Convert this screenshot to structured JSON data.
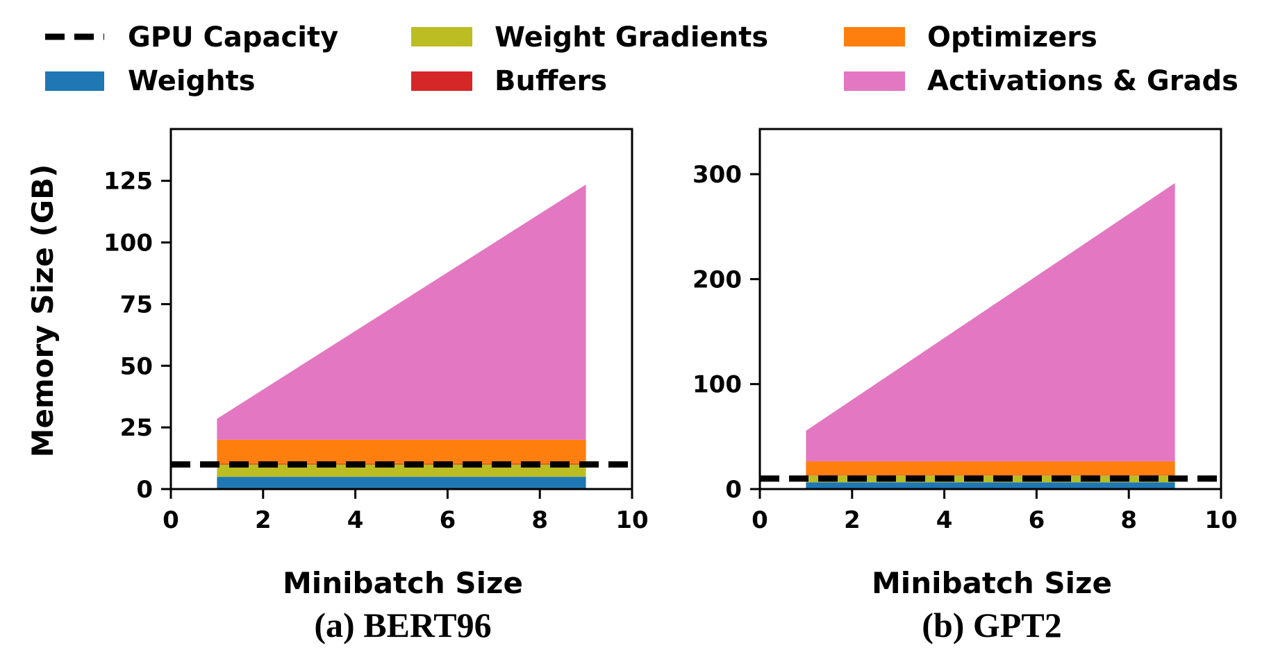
{
  "legend": {
    "gpu_capacity": "GPU Capacity",
    "weights": "Weights",
    "weight_gradients": "Weight Gradients",
    "buffers": "Buffers",
    "optimizers": "Optimizers",
    "activations": "Activations & Grads"
  },
  "colors": {
    "weights": "#1f77b4",
    "weight_gradients": "#bcbd22",
    "buffers": "#d62728",
    "optimizers": "#ff7f0e",
    "activations": "#e377c2",
    "gpu_capacity": "#000000"
  },
  "chart_data": [
    {
      "type": "area",
      "caption": "(a) BERT96",
      "xlabel": "Minibatch Size",
      "ylabel": "Memory Size (GB)",
      "xlim": [
        0,
        10
      ],
      "ylim": [
        0,
        146
      ],
      "xticks": [
        "0",
        "2",
        "4",
        "6",
        "8",
        "10"
      ],
      "yticks": [
        "0",
        "25",
        "50",
        "75",
        "100",
        "125"
      ],
      "x": [
        1,
        9
      ],
      "series": [
        {
          "name": "Weights",
          "values": [
            5,
            5
          ]
        },
        {
          "name": "Weight Gradients",
          "values": [
            5,
            5
          ]
        },
        {
          "name": "Buffers",
          "values": [
            0.3,
            0.3
          ]
        },
        {
          "name": "Optimizers",
          "values": [
            9.7,
            9.7
          ]
        },
        {
          "name": "Activations & Grads",
          "values": [
            8.5,
            103.5
          ]
        }
      ],
      "gpu_capacity": 10
    },
    {
      "type": "area",
      "caption": "(b) GPT2",
      "xlabel": "Minibatch Size",
      "ylabel": "",
      "xlim": [
        0,
        10
      ],
      "ylim": [
        0,
        343
      ],
      "xticks": [
        "0",
        "2",
        "4",
        "6",
        "8",
        "10"
      ],
      "yticks": [
        "0",
        "100",
        "200",
        "300"
      ],
      "x": [
        1,
        9
      ],
      "series": [
        {
          "name": "Weights",
          "values": [
            6.5,
            6.5
          ]
        },
        {
          "name": "Weight Gradients",
          "values": [
            6.5,
            6.5
          ]
        },
        {
          "name": "Buffers",
          "values": [
            0.5,
            0.5
          ]
        },
        {
          "name": "Optimizers",
          "values": [
            13,
            13
          ]
        },
        {
          "name": "Activations & Grads",
          "values": [
            29,
            265
          ]
        }
      ],
      "gpu_capacity": 10
    }
  ]
}
